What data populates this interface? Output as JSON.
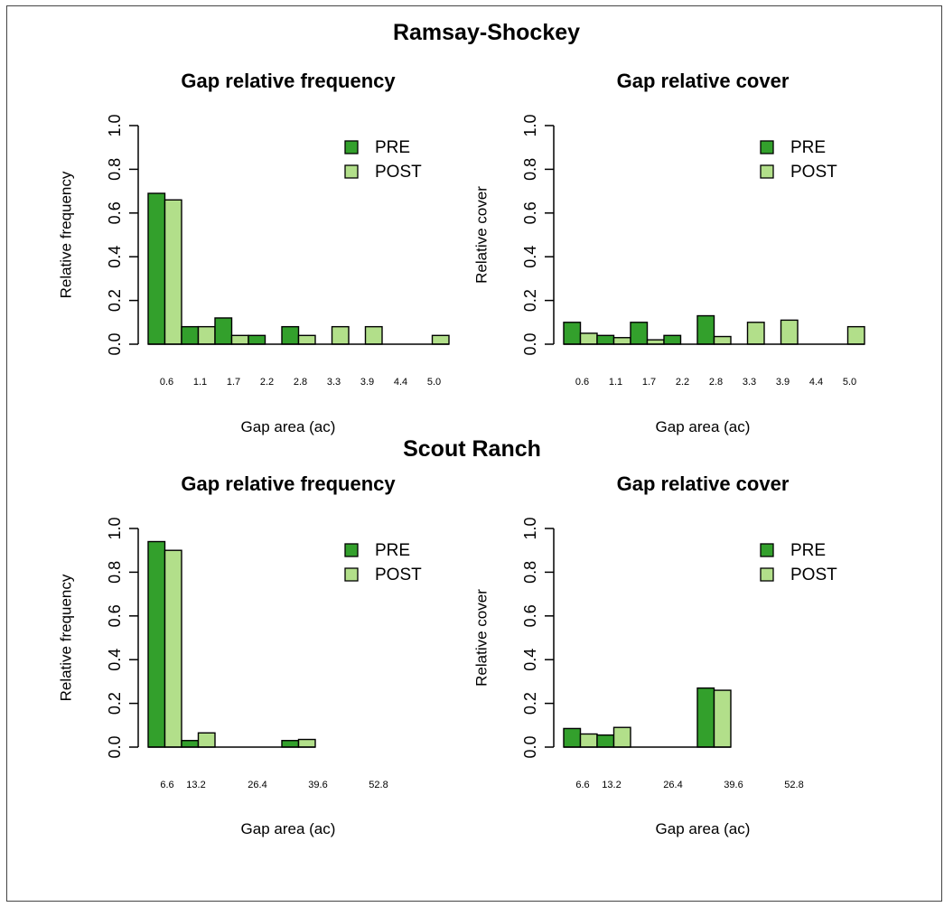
{
  "colors": {
    "pre": "#33a02c",
    "post": "#b2df8a",
    "axis": "#000000"
  },
  "sections": [
    {
      "title": "Ramsay-Shockey"
    },
    {
      "title": "Scout Ranch"
    }
  ],
  "chart_data": [
    {
      "type": "bar",
      "title": "Gap relative frequency",
      "xlabel": "Gap area (ac)",
      "ylabel": "Relative frequency",
      "ylim": [
        0,
        1
      ],
      "yticks": [
        "0.0",
        "0.2",
        "0.4",
        "0.6",
        "0.8",
        "1.0"
      ],
      "categories": [
        "0.6",
        "1.1",
        "1.7",
        "2.2",
        "2.8",
        "3.3",
        "3.9",
        "4.4",
        "5.0"
      ],
      "series": [
        {
          "name": "PRE",
          "values": [
            0.69,
            0.08,
            0.12,
            0.04,
            0.08,
            0.0,
            0.0,
            0.0,
            0.0
          ]
        },
        {
          "name": "POST",
          "values": [
            0.66,
            0.08,
            0.04,
            0.0,
            0.04,
            0.08,
            0.08,
            0.0,
            0.04
          ]
        }
      ],
      "legend": "top-right",
      "grid": false
    },
    {
      "type": "bar",
      "title": "Gap relative cover",
      "xlabel": "Gap area (ac)",
      "ylabel": "Relative cover",
      "ylim": [
        0,
        1
      ],
      "yticks": [
        "0.0",
        "0.2",
        "0.4",
        "0.6",
        "0.8",
        "1.0"
      ],
      "categories": [
        "0.6",
        "1.1",
        "1.7",
        "2.2",
        "2.8",
        "3.3",
        "3.9",
        "4.4",
        "5.0"
      ],
      "series": [
        {
          "name": "PRE",
          "values": [
            0.1,
            0.04,
            0.1,
            0.04,
            0.13,
            0.0,
            0.0,
            0.0,
            0.0
          ]
        },
        {
          "name": "POST",
          "values": [
            0.05,
            0.03,
            0.02,
            0.0,
            0.035,
            0.1,
            0.11,
            0.0,
            0.08
          ]
        }
      ],
      "legend": "top-right",
      "grid": false
    },
    {
      "type": "bar",
      "title": "Gap relative frequency",
      "xlabel": "Gap area (ac)",
      "ylabel": "Relative frequency",
      "ylim": [
        0,
        1
      ],
      "yticks": [
        "0.0",
        "0.2",
        "0.4",
        "0.6",
        "0.8",
        "1.0"
      ],
      "bins": 5,
      "tick_labels": [
        "6.6",
        "13.2",
        "26.4",
        "39.6",
        "52.8"
      ],
      "series": [
        {
          "name": "PRE",
          "values": [
            0.94,
            0.03,
            0.0,
            0.0,
            0.03
          ]
        },
        {
          "name": "POST",
          "values": [
            0.9,
            0.065,
            0.0,
            0.0,
            0.035
          ]
        }
      ],
      "legend": "top-right",
      "grid": false
    },
    {
      "type": "bar",
      "title": "Gap relative cover",
      "xlabel": "Gap area (ac)",
      "ylabel": "Relative cover",
      "ylim": [
        0,
        1
      ],
      "yticks": [
        "0.0",
        "0.2",
        "0.4",
        "0.6",
        "0.8",
        "1.0"
      ],
      "bins": 5,
      "tick_labels": [
        "6.6",
        "13.2",
        "26.4",
        "39.6",
        "52.8"
      ],
      "series": [
        {
          "name": "PRE",
          "values": [
            0.085,
            0.055,
            0.0,
            0.0,
            0.27
          ]
        },
        {
          "name": "POST",
          "values": [
            0.06,
            0.09,
            0.0,
            0.0,
            0.26
          ]
        }
      ],
      "legend": "top-right",
      "grid": false
    }
  ]
}
